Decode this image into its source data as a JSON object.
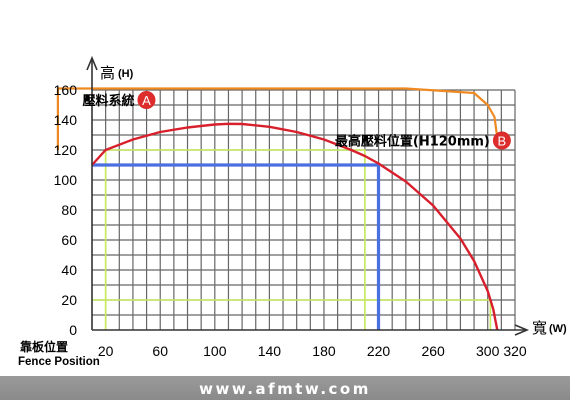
{
  "chart_data": {
    "type": "line",
    "xlabel": "寬",
    "xunit": "(W)",
    "ylabel": "高",
    "yunit": "(H)",
    "xlim": [
      10,
      320
    ],
    "ylim": [
      0,
      160
    ],
    "xticks": [
      {
        "v": 20,
        "label": "20"
      },
      {
        "v": 60,
        "label": "60"
      },
      {
        "v": 100,
        "label": "100"
      },
      {
        "v": 140,
        "label": "140"
      },
      {
        "v": 180,
        "label": "180"
      },
      {
        "v": 220,
        "label": "220"
      },
      {
        "v": 260,
        "label": "260"
      },
      {
        "v": 300,
        "label": "300"
      },
      {
        "v": 320,
        "label": "320"
      }
    ],
    "yticks": [
      {
        "v": 0,
        "label": "0"
      },
      {
        "v": 20,
        "label": "20"
      },
      {
        "v": 40,
        "label": "40"
      },
      {
        "v": 60,
        "label": "60"
      },
      {
        "v": 80,
        "label": "80"
      },
      {
        "v": 100,
        "label": "100"
      },
      {
        "v": 120,
        "label": "120"
      },
      {
        "v": 140,
        "label": "140"
      },
      {
        "v": 160,
        "label": "160"
      }
    ],
    "origin_label": "靠板位置",
    "origin_label_en": "Fence Position",
    "grid": true,
    "colors": {
      "grid": "#666666",
      "curve": "#d8202c",
      "blue": "#4a6fe0",
      "yellow": "#c8ec5c",
      "orange": "#ef8a22",
      "marker": "#dd2c2c"
    },
    "curve": [
      {
        "x": 10,
        "y": 110
      },
      {
        "x": 20,
        "y": 120
      },
      {
        "x": 40,
        "y": 127
      },
      {
        "x": 60,
        "y": 132
      },
      {
        "x": 80,
        "y": 135
      },
      {
        "x": 100,
        "y": 137
      },
      {
        "x": 110,
        "y": 137.5
      },
      {
        "x": 120,
        "y": 137.3
      },
      {
        "x": 140,
        "y": 135.5
      },
      {
        "x": 160,
        "y": 132
      },
      {
        "x": 180,
        "y": 127
      },
      {
        "x": 200,
        "y": 120
      },
      {
        "x": 210,
        "y": 116
      },
      {
        "x": 220,
        "y": 111
      },
      {
        "x": 240,
        "y": 99
      },
      {
        "x": 260,
        "y": 83
      },
      {
        "x": 280,
        "y": 61
      },
      {
        "x": 290,
        "y": 46
      },
      {
        "x": 300,
        "y": 26
      },
      {
        "x": 304,
        "y": 14
      },
      {
        "x": 307,
        "y": 0
      }
    ],
    "blue_lines": [
      [
        {
          "x": 10,
          "y": 110
        },
        {
          "x": 220,
          "y": 110
        },
        {
          "x": 220,
          "y": 0
        }
      ]
    ],
    "yellow_lines": [
      [
        {
          "x": 20,
          "y": 0
        },
        {
          "x": 20,
          "y": 120
        },
        {
          "x": 210,
          "y": 120
        },
        {
          "x": 210,
          "y": 0
        }
      ],
      [
        {
          "x": 10,
          "y": 20
        },
        {
          "x": 302,
          "y": 20
        },
        {
          "x": 302,
          "y": 0
        }
      ]
    ],
    "envelope": [
      {
        "x": -15,
        "y": 120
      },
      {
        "x": -15,
        "y": 161
      },
      {
        "x": 240,
        "y": 161
      },
      {
        "x": 290,
        "y": 158
      },
      {
        "x": 300,
        "y": 150
      },
      {
        "x": 305,
        "y": 142
      },
      {
        "x": 307,
        "y": 128
      }
    ],
    "annotations": [
      {
        "name": "annotation-pressure-system",
        "text": "壓料系統",
        "marker": "A",
        "x": 3,
        "y": 150
      },
      {
        "name": "annotation-max-pressure-position",
        "text": "最高壓料位置(H120mm)",
        "marker": "B",
        "x": 188,
        "y": 123
      }
    ]
  },
  "footer": {
    "text": "www.afmtw.com"
  }
}
